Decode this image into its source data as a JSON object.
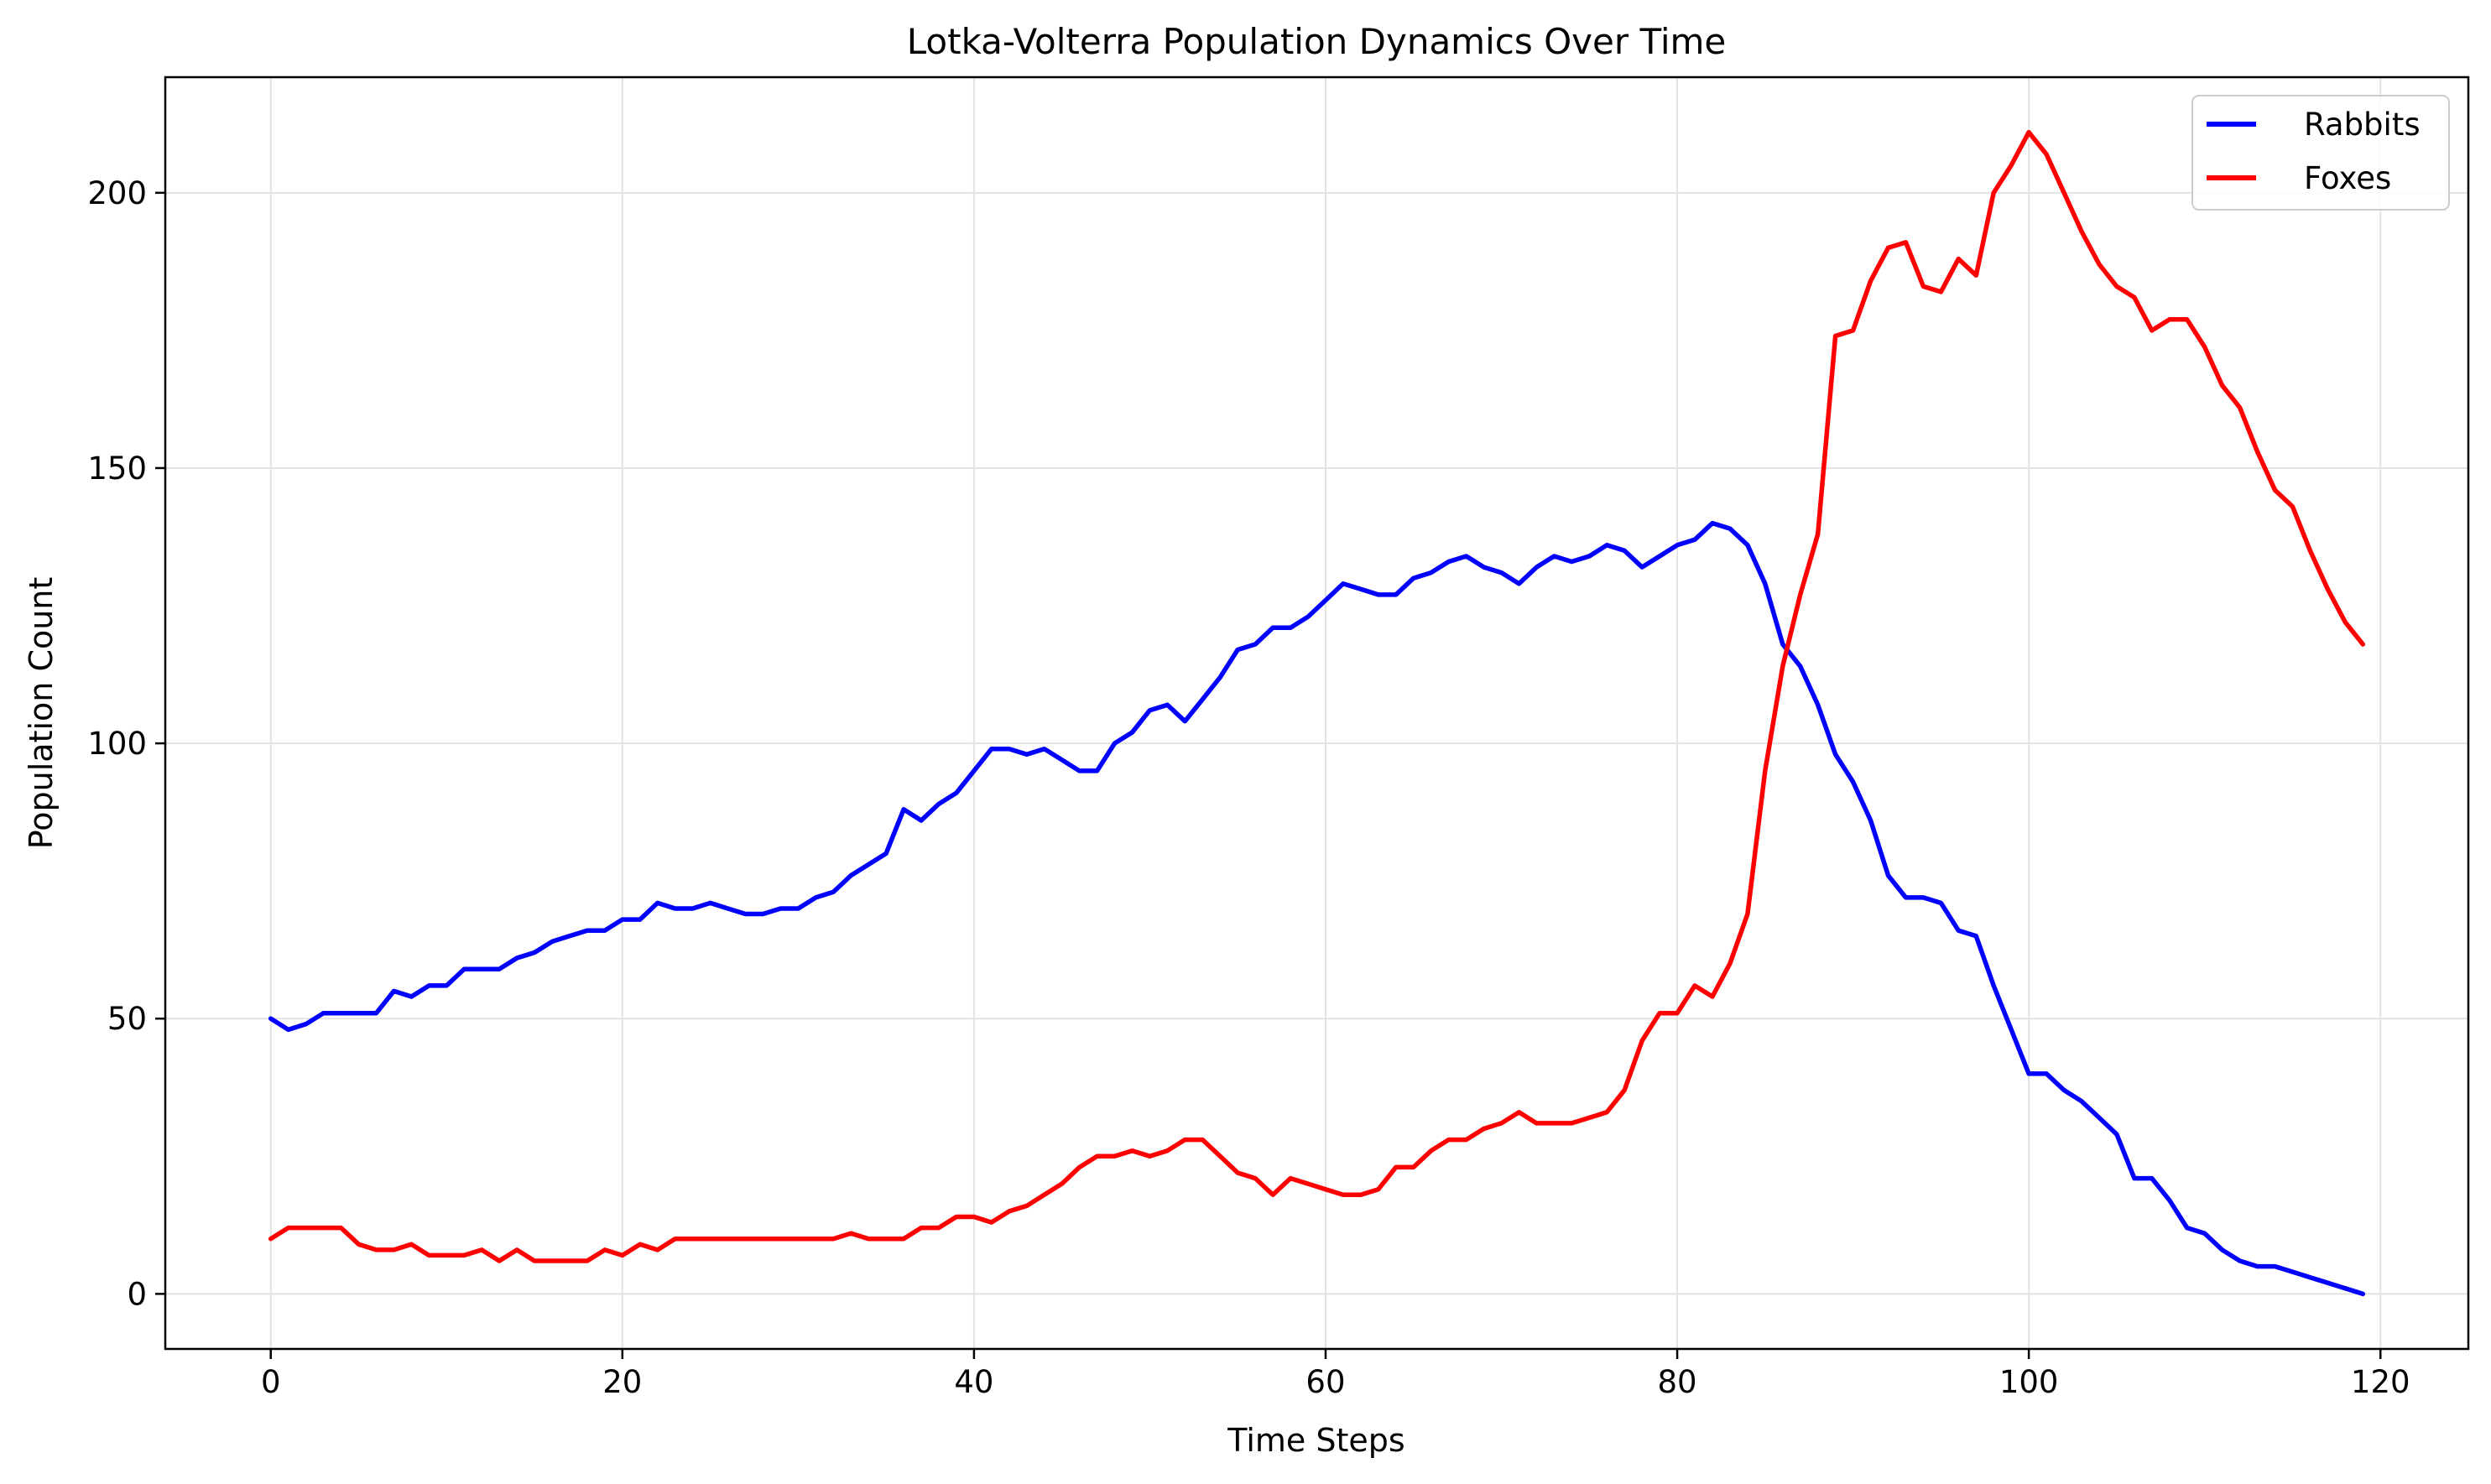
{
  "chart_data": {
    "type": "line",
    "title": "Lotka-Volterra Population Dynamics Over Time",
    "xlabel": "Time Steps",
    "ylabel": "Population Count",
    "xlim": [
      -6,
      125
    ],
    "ylim": [
      -10,
      221
    ],
    "xticks": [
      0,
      20,
      40,
      60,
      80,
      100,
      120
    ],
    "yticks": [
      0,
      50,
      100,
      150,
      200
    ],
    "grid": true,
    "legend_position": "top-right",
    "series": [
      {
        "name": "Rabbits",
        "color": "#0000ff",
        "x": [
          0,
          1,
          2,
          3,
          4,
          5,
          6,
          7,
          8,
          9,
          10,
          11,
          12,
          13,
          14,
          15,
          16,
          17,
          18,
          19,
          20,
          21,
          22,
          23,
          24,
          25,
          26,
          27,
          28,
          29,
          30,
          31,
          32,
          33,
          34,
          35,
          36,
          37,
          38,
          39,
          40,
          41,
          42,
          43,
          44,
          45,
          46,
          47,
          48,
          49,
          50,
          51,
          52,
          53,
          54,
          55,
          56,
          57,
          58,
          59,
          60,
          61,
          62,
          63,
          64,
          65,
          66,
          67,
          68,
          69,
          70,
          71,
          72,
          73,
          74,
          75,
          76,
          77,
          78,
          79,
          80,
          81,
          82,
          83,
          84,
          85,
          86,
          87,
          88,
          89,
          90,
          91,
          92,
          93,
          94,
          95,
          96,
          97,
          98,
          99,
          100,
          101,
          102,
          103,
          104,
          105,
          106,
          107,
          108,
          109,
          110,
          111,
          112,
          113,
          114,
          115,
          116,
          117,
          118,
          119
        ],
        "values": [
          50,
          48,
          49,
          51,
          51,
          51,
          51,
          55,
          54,
          56,
          56,
          59,
          59,
          59,
          61,
          62,
          64,
          65,
          66,
          66,
          68,
          68,
          71,
          70,
          70,
          71,
          70,
          69,
          69,
          70,
          70,
          72,
          73,
          76,
          78,
          80,
          88,
          86,
          89,
          91,
          95,
          99,
          99,
          98,
          99,
          97,
          95,
          95,
          100,
          102,
          106,
          107,
          104,
          108,
          112,
          117,
          118,
          121,
          121,
          123,
          126,
          129,
          128,
          127,
          127,
          130,
          131,
          133,
          134,
          132,
          131,
          129,
          132,
          134,
          133,
          134,
          136,
          135,
          132,
          134,
          136,
          137,
          140,
          139,
          136,
          129,
          118,
          114,
          107,
          98,
          93,
          86,
          76,
          72,
          72,
          71,
          66,
          65,
          56,
          48,
          40,
          40,
          37,
          35,
          32,
          29,
          21,
          21,
          17,
          12,
          11,
          8,
          6,
          5,
          5,
          4,
          3,
          2,
          1,
          0
        ]
      },
      {
        "name": "Foxes",
        "color": "#ff0000",
        "x": [
          0,
          1,
          2,
          3,
          4,
          5,
          6,
          7,
          8,
          9,
          10,
          11,
          12,
          13,
          14,
          15,
          16,
          17,
          18,
          19,
          20,
          21,
          22,
          23,
          24,
          25,
          26,
          27,
          28,
          29,
          30,
          31,
          32,
          33,
          34,
          35,
          36,
          37,
          38,
          39,
          40,
          41,
          42,
          43,
          44,
          45,
          46,
          47,
          48,
          49,
          50,
          51,
          52,
          53,
          54,
          55,
          56,
          57,
          58,
          59,
          60,
          61,
          62,
          63,
          64,
          65,
          66,
          67,
          68,
          69,
          70,
          71,
          72,
          73,
          74,
          75,
          76,
          77,
          78,
          79,
          80,
          81,
          82,
          83,
          84,
          85,
          86,
          87,
          88,
          89,
          90,
          91,
          92,
          93,
          94,
          95,
          96,
          97,
          98,
          99,
          100,
          101,
          102,
          103,
          104,
          105,
          106,
          107,
          108,
          109,
          110,
          111,
          112,
          113,
          114,
          115,
          116,
          117,
          118,
          119
        ],
        "values": [
          10,
          12,
          12,
          12,
          12,
          9,
          8,
          8,
          9,
          7,
          7,
          7,
          8,
          6,
          8,
          6,
          6,
          6,
          6,
          8,
          7,
          9,
          8,
          10,
          10,
          10,
          10,
          10,
          10,
          10,
          10,
          10,
          10,
          11,
          10,
          10,
          10,
          12,
          12,
          14,
          14,
          13,
          15,
          16,
          18,
          20,
          23,
          25,
          25,
          26,
          25,
          26,
          28,
          28,
          25,
          22,
          21,
          18,
          21,
          20,
          19,
          18,
          18,
          19,
          23,
          23,
          26,
          28,
          28,
          30,
          31,
          33,
          31,
          31,
          31,
          32,
          33,
          37,
          46,
          51,
          51,
          56,
          54,
          60,
          69,
          95,
          114,
          127,
          138,
          174,
          175,
          184,
          190,
          191,
          183,
          182,
          188,
          185,
          200,
          205,
          211,
          207,
          200,
          193,
          187,
          183,
          181,
          175,
          177,
          177,
          172,
          165,
          161,
          153,
          146,
          143,
          135,
          128,
          122,
          118
        ]
      }
    ]
  }
}
